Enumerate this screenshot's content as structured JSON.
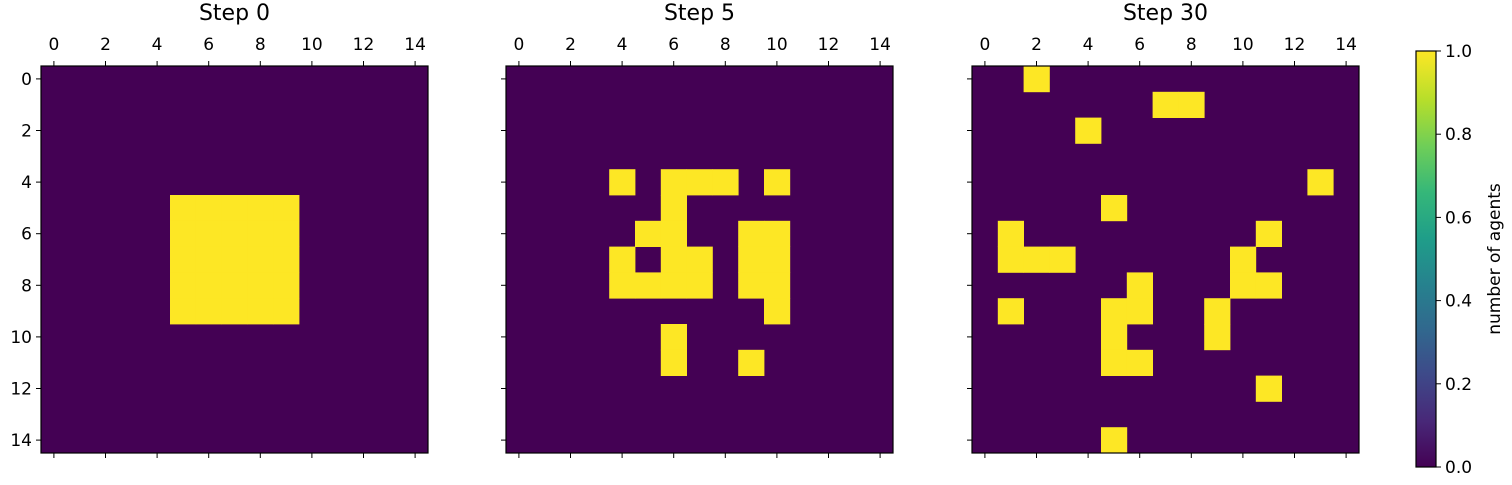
{
  "chart_data": {
    "type": "heatmap",
    "colormap": "viridis",
    "colorbar": {
      "label": "number of agents",
      "range": [
        0.0,
        1.0
      ],
      "ticks": [
        "0.0",
        "0.2",
        "0.4",
        "0.6",
        "0.8",
        "1.0"
      ]
    },
    "x_ticks": [
      "0",
      "2",
      "4",
      "6",
      "8",
      "10",
      "12",
      "14"
    ],
    "y_ticks": [
      "0",
      "2",
      "4",
      "6",
      "8",
      "10",
      "12",
      "14"
    ],
    "grid_size": [
      15,
      15
    ],
    "panels": [
      {
        "title": "Step 0",
        "occupied_cells": [
          [
            5,
            5
          ],
          [
            5,
            6
          ],
          [
            5,
            7
          ],
          [
            5,
            8
          ],
          [
            5,
            9
          ],
          [
            6,
            5
          ],
          [
            6,
            6
          ],
          [
            6,
            7
          ],
          [
            6,
            8
          ],
          [
            6,
            9
          ],
          [
            7,
            5
          ],
          [
            7,
            6
          ],
          [
            7,
            7
          ],
          [
            7,
            8
          ],
          [
            7,
            9
          ],
          [
            8,
            5
          ],
          [
            8,
            6
          ],
          [
            8,
            7
          ],
          [
            8,
            8
          ],
          [
            8,
            9
          ],
          [
            9,
            5
          ],
          [
            9,
            6
          ],
          [
            9,
            7
          ],
          [
            9,
            8
          ],
          [
            9,
            9
          ]
        ]
      },
      {
        "title": "Step 5",
        "occupied_cells": [
          [
            4,
            4
          ],
          [
            4,
            6
          ],
          [
            4,
            7
          ],
          [
            4,
            8
          ],
          [
            4,
            10
          ],
          [
            5,
            6
          ],
          [
            6,
            5
          ],
          [
            6,
            6
          ],
          [
            6,
            9
          ],
          [
            6,
            10
          ],
          [
            7,
            4
          ],
          [
            7,
            6
          ],
          [
            7,
            7
          ],
          [
            7,
            9
          ],
          [
            7,
            10
          ],
          [
            8,
            4
          ],
          [
            8,
            5
          ],
          [
            8,
            6
          ],
          [
            8,
            7
          ],
          [
            8,
            9
          ],
          [
            8,
            10
          ],
          [
            9,
            10
          ],
          [
            10,
            6
          ],
          [
            11,
            6
          ],
          [
            11,
            9
          ]
        ]
      },
      {
        "title": "Step 30",
        "occupied_cells": [
          [
            0,
            2
          ],
          [
            1,
            7
          ],
          [
            1,
            8
          ],
          [
            2,
            4
          ],
          [
            4,
            13
          ],
          [
            5,
            5
          ],
          [
            6,
            1
          ],
          [
            6,
            11
          ],
          [
            7,
            1
          ],
          [
            7,
            2
          ],
          [
            7,
            3
          ],
          [
            7,
            10
          ],
          [
            8,
            6
          ],
          [
            8,
            10
          ],
          [
            8,
            11
          ],
          [
            9,
            1
          ],
          [
            9,
            5
          ],
          [
            9,
            6
          ],
          [
            9,
            9
          ],
          [
            10,
            5
          ],
          [
            10,
            9
          ],
          [
            11,
            5
          ],
          [
            11,
            6
          ],
          [
            12,
            11
          ],
          [
            14,
            5
          ]
        ]
      }
    ]
  }
}
